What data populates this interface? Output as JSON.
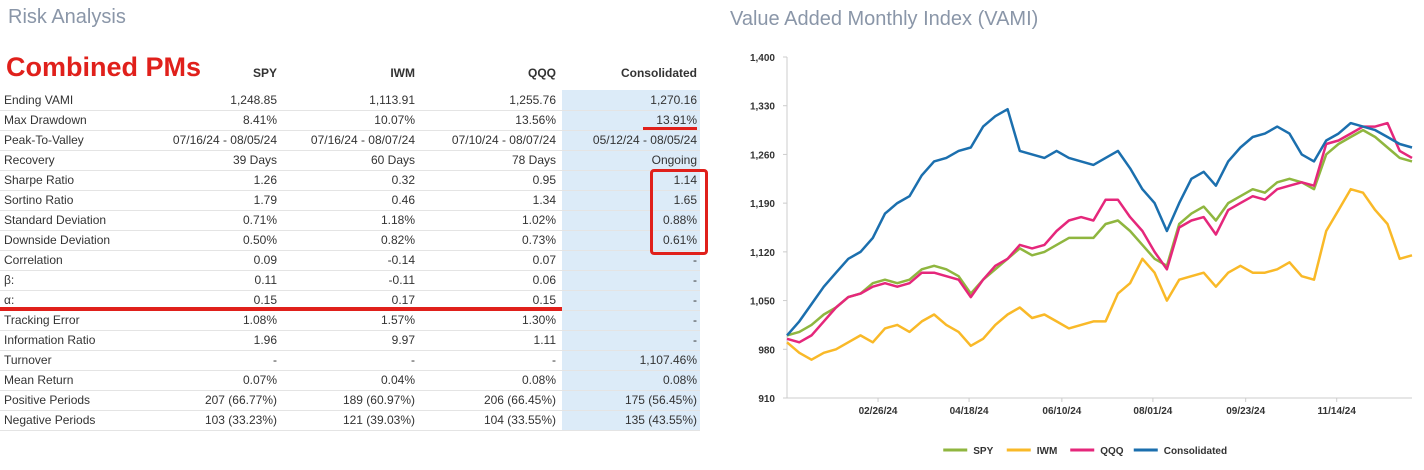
{
  "header": {
    "title": "Risk Analysis",
    "annotation": "Combined PMs"
  },
  "table": {
    "columns": [
      "SPY",
      "IWM",
      "QQQ",
      "Consolidated"
    ],
    "rows": [
      [
        "Ending VAMI",
        "1,248.85",
        "1,113.91",
        "1,255.76",
        "1,270.16"
      ],
      [
        "Max Drawdown",
        "8.41%",
        "10.07%",
        "13.56%",
        "13.91%"
      ],
      [
        "Peak-To-Valley",
        "07/16/24 - 08/05/24",
        "07/16/24 - 08/07/24",
        "07/10/24 - 08/07/24",
        "05/12/24 - 08/05/24"
      ],
      [
        "Recovery",
        "39 Days",
        "60 Days",
        "78 Days",
        "Ongoing"
      ],
      [
        "Sharpe Ratio",
        "1.26",
        "0.32",
        "0.95",
        "1.14"
      ],
      [
        "Sortino Ratio",
        "1.79",
        "0.46",
        "1.34",
        "1.65"
      ],
      [
        "Standard Deviation",
        "0.71%",
        "1.18%",
        "1.02%",
        "0.88%"
      ],
      [
        "Downside Deviation",
        "0.50%",
        "0.82%",
        "0.73%",
        "0.61%"
      ],
      [
        "Correlation",
        "0.09",
        "-0.14",
        "0.07",
        "-"
      ],
      [
        "β:",
        "0.11",
        "-0.11",
        "0.06",
        "-"
      ],
      [
        "α:",
        "0.15",
        "0.17",
        "0.15",
        "-"
      ],
      [
        "Tracking Error",
        "1.08%",
        "1.57%",
        "1.30%",
        "-"
      ],
      [
        "Information Ratio",
        "1.96",
        "9.97",
        "1.11",
        "-"
      ],
      [
        "Turnover",
        "-",
        "-",
        "-",
        "1,107.46%"
      ],
      [
        "Mean Return",
        "0.07%",
        "0.04%",
        "0.08%",
        "0.08%"
      ],
      [
        "Positive Periods",
        "207 (66.77%)",
        "189 (60.97%)",
        "206 (66.45%)",
        "175 (56.45%)"
      ],
      [
        "Negative Periods",
        "103 (33.23%)",
        "121 (39.03%)",
        "104 (33.55%)",
        "135 (43.55%)"
      ]
    ]
  },
  "chart_data": {
    "type": "line",
    "title": "Value Added Monthly Index (VAMI)",
    "x": [
      "01/05/24",
      "01/12/24",
      "01/19/24",
      "01/26/24",
      "02/02/24",
      "02/09/24",
      "02/16/24",
      "02/23/24",
      "03/01/24",
      "03/08/24",
      "03/15/24",
      "03/22/24",
      "03/29/24",
      "04/05/24",
      "04/12/24",
      "04/19/24",
      "04/26/24",
      "05/03/24",
      "05/10/24",
      "05/17/24",
      "05/24/24",
      "05/31/24",
      "06/07/24",
      "06/14/24",
      "06/21/24",
      "06/28/24",
      "07/05/24",
      "07/12/24",
      "07/19/24",
      "07/26/24",
      "08/02/24",
      "08/09/24",
      "08/16/24",
      "08/23/24",
      "08/30/24",
      "09/06/24",
      "09/13/24",
      "09/20/24",
      "09/27/24",
      "10/04/24",
      "10/11/24",
      "10/18/24",
      "10/25/24",
      "11/01/24",
      "11/08/24",
      "11/15/24",
      "11/22/24",
      "11/29/24",
      "12/06/24",
      "12/13/24",
      "12/20/24",
      "12/27/24"
    ],
    "series": [
      {
        "name": "SPY",
        "color": "#8fb63f",
        "values": [
          1000,
          1005,
          1015,
          1030,
          1040,
          1055,
          1060,
          1075,
          1080,
          1075,
          1080,
          1095,
          1100,
          1095,
          1085,
          1060,
          1080,
          1095,
          1110,
          1125,
          1115,
          1120,
          1130,
          1140,
          1140,
          1140,
          1160,
          1165,
          1150,
          1130,
          1110,
          1100,
          1160,
          1175,
          1185,
          1165,
          1190,
          1200,
          1210,
          1205,
          1220,
          1225,
          1220,
          1210,
          1260,
          1275,
          1285,
          1295,
          1285,
          1270,
          1255,
          1250
        ]
      },
      {
        "name": "IWM",
        "color": "#f9b928",
        "values": [
          990,
          975,
          965,
          975,
          980,
          990,
          1000,
          990,
          1010,
          1015,
          1005,
          1020,
          1030,
          1015,
          1005,
          985,
          995,
          1015,
          1030,
          1040,
          1025,
          1030,
          1020,
          1010,
          1015,
          1020,
          1020,
          1060,
          1075,
          1110,
          1090,
          1050,
          1080,
          1085,
          1090,
          1070,
          1090,
          1100,
          1090,
          1090,
          1095,
          1105,
          1085,
          1080,
          1150,
          1180,
          1210,
          1205,
          1180,
          1160,
          1110,
          1115
        ]
      },
      {
        "name": "QQQ",
        "color": "#e5277b",
        "values": [
          995,
          990,
          1000,
          1020,
          1040,
          1055,
          1060,
          1070,
          1075,
          1070,
          1075,
          1090,
          1090,
          1085,
          1080,
          1055,
          1080,
          1100,
          1110,
          1130,
          1125,
          1130,
          1150,
          1165,
          1170,
          1165,
          1195,
          1195,
          1170,
          1150,
          1120,
          1095,
          1155,
          1165,
          1170,
          1145,
          1180,
          1190,
          1200,
          1195,
          1210,
          1215,
          1220,
          1215,
          1275,
          1280,
          1290,
          1300,
          1300,
          1305,
          1265,
          1255
        ]
      },
      {
        "name": "Consolidated",
        "color": "#1b6fae",
        "values": [
          1000,
          1020,
          1045,
          1070,
          1090,
          1110,
          1120,
          1140,
          1175,
          1190,
          1200,
          1230,
          1250,
          1255,
          1265,
          1270,
          1300,
          1315,
          1325,
          1265,
          1260,
          1255,
          1265,
          1255,
          1250,
          1245,
          1255,
          1265,
          1240,
          1210,
          1190,
          1150,
          1190,
          1225,
          1235,
          1215,
          1250,
          1270,
          1285,
          1290,
          1300,
          1290,
          1260,
          1250,
          1280,
          1290,
          1305,
          1300,
          1295,
          1285,
          1275,
          1270
        ]
      }
    ],
    "xlim": [
      "01/05/24",
      "12/27/24"
    ],
    "xticks": [
      "02/26/24",
      "04/18/24",
      "06/10/24",
      "08/01/24",
      "09/23/24",
      "11/14/24"
    ],
    "ylim": [
      910,
      1400
    ],
    "yticks": [
      910,
      980,
      {
        "value": 1050,
        "label": "1,050"
      },
      {
        "value": 1120,
        "label": "1,120"
      },
      {
        "value": 1190,
        "label": "1,190"
      },
      {
        "value": 1260,
        "label": "1,260"
      },
      {
        "value": 1330,
        "label": "1,330"
      },
      {
        "value": 1400,
        "label": "1,400"
      }
    ],
    "legend": "bottom"
  }
}
